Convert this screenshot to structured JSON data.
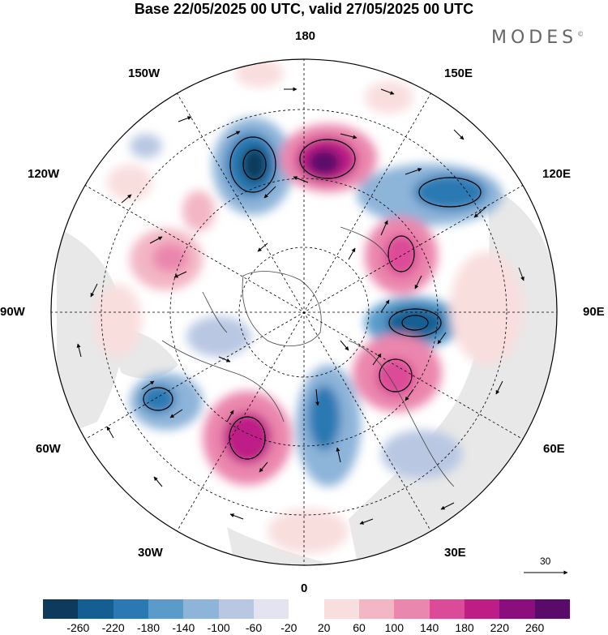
{
  "title": "Base 22/05/2025 00 UTC, valid 27/05/2025 00 UTC",
  "logo": "MODES",
  "logo_mark": "©",
  "longitudes": {
    "lon_180": "180",
    "lon_150e": "150E",
    "lon_120e": "120E",
    "lon_90e": "90E",
    "lon_60e": "60E",
    "lon_30e": "30E",
    "lon_0": "0",
    "lon_30w": "30W",
    "lon_60w": "60W",
    "lon_90w": "90W",
    "lon_120w": "120W",
    "lon_150w": "150W"
  },
  "reference_vector": "30",
  "colorbar": {
    "labels": [
      "-260",
      "-220",
      "-180",
      "-140",
      "-100",
      "-60",
      "-20",
      "20",
      "60",
      "100",
      "140",
      "180",
      "220",
      "260"
    ],
    "colors": [
      "#0e3a5c",
      "#155e92",
      "#2a79b3",
      "#5a9bcb",
      "#8db4d9",
      "#b9c7e3",
      "#e4e4f1",
      "#ffffff",
      "#f9dede",
      "#f3b6c4",
      "#eb86ad",
      "#db4b97",
      "#be1d86",
      "#8b0e7e",
      "#5a0a6b"
    ]
  }
}
